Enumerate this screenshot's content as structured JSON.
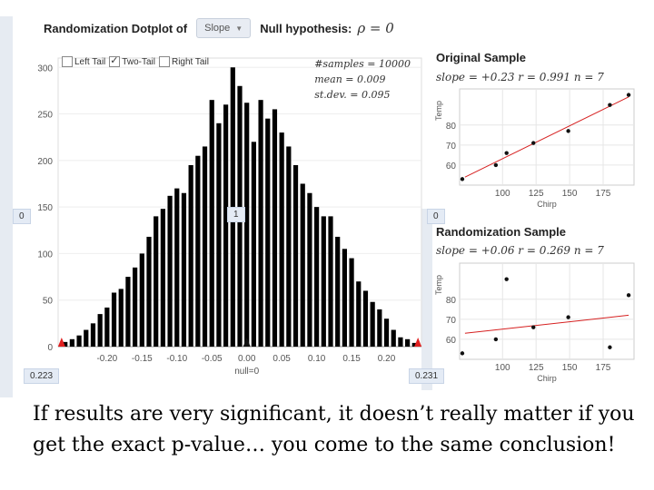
{
  "header": {
    "title": "Randomization Dotplot of",
    "statistic_select": "Slope",
    "null_label": "Null hypothesis:",
    "null_value": "ρ = 0"
  },
  "tails": [
    {
      "label": "Left Tail",
      "checked": false
    },
    {
      "label": "Two-Tail",
      "checked": true
    },
    {
      "label": "Right Tail",
      "checked": false
    }
  ],
  "stats": {
    "samples": "#samples = 10000",
    "mean": "mean = 0.009",
    "stdev": "st.dev. = 0.095"
  },
  "side_boxes": {
    "left_mid": "0",
    "center_mid": "1",
    "right_mid": "0",
    "left_bottom": "0.223",
    "right_bottom": "0.231"
  },
  "null_marker": "null=0",
  "chart_data": [
    {
      "type": "bar",
      "title": "Randomization Dotplot of Slope",
      "xlabel": "",
      "ylabel": "",
      "x": [
        -0.26,
        -0.25,
        -0.24,
        -0.23,
        -0.22,
        -0.21,
        -0.2,
        -0.19,
        -0.18,
        -0.17,
        -0.16,
        -0.15,
        -0.14,
        -0.13,
        -0.12,
        -0.11,
        -0.1,
        -0.09,
        -0.08,
        -0.07,
        -0.06,
        -0.05,
        -0.04,
        -0.03,
        -0.02,
        -0.01,
        0.0,
        0.01,
        0.02,
        0.03,
        0.04,
        0.05,
        0.06,
        0.07,
        0.08,
        0.09,
        0.1,
        0.11,
        0.12,
        0.13,
        0.14,
        0.15,
        0.16,
        0.17,
        0.18,
        0.19,
        0.2,
        0.21,
        0.22,
        0.23,
        0.24
      ],
      "values": [
        5,
        8,
        12,
        18,
        25,
        35,
        42,
        58,
        62,
        75,
        85,
        100,
        118,
        140,
        148,
        162,
        170,
        165,
        195,
        205,
        215,
        265,
        240,
        260,
        300,
        280,
        262,
        220,
        265,
        245,
        255,
        230,
        215,
        195,
        175,
        165,
        150,
        140,
        140,
        118,
        105,
        95,
        70,
        60,
        48,
        40,
        30,
        18,
        10,
        8,
        4
      ],
      "x_ticks": [
        "-0.20",
        "-0.15",
        "-0.10",
        "-0.05",
        "0.00",
        "0.05",
        "0.10",
        "0.15",
        "0.20"
      ],
      "y_ticks": [
        "0",
        "50",
        "100",
        "150",
        "200",
        "250",
        "300"
      ],
      "ylim": [
        0,
        310
      ],
      "xlim": [
        -0.27,
        0.25
      ]
    },
    {
      "type": "scatter",
      "title": "Original Sample",
      "equation": "slope = +0.23  r = 0.991  n = 7",
      "xlabel": "Chirp",
      "ylabel": "Temp",
      "x": [
        70,
        95,
        103,
        123,
        149,
        180,
        194
      ],
      "y": [
        53,
        60,
        66,
        71,
        77,
        90,
        95
      ],
      "x_ticks": [
        "100",
        "125",
        "150",
        "175"
      ],
      "y_ticks": [
        "60",
        "70",
        "80"
      ],
      "trend": [
        [
          72,
          54
        ],
        [
          194,
          94
        ]
      ]
    },
    {
      "type": "scatter",
      "title": "Randomization Sample",
      "equation": "slope = +0.06  r = 0.269  n = 7",
      "xlabel": "Chirp",
      "ylabel": "Temp",
      "x": [
        70,
        95,
        103,
        123,
        149,
        180,
        194
      ],
      "y": [
        53,
        60,
        90,
        66,
        71,
        56,
        82
      ],
      "x_ticks": [
        "100",
        "125",
        "150",
        "175"
      ],
      "y_ticks": [
        "60",
        "70",
        "80"
      ],
      "trend": [
        [
          72,
          63
        ],
        [
          194,
          72
        ]
      ]
    }
  ],
  "caption": "If results are very significant, it doesn’t really matter if you get the exact p-value… you come to the same conclusion!"
}
